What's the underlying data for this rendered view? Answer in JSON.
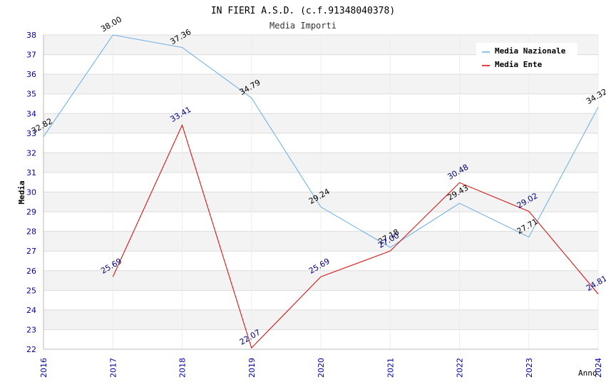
{
  "chart_data": {
    "type": "line",
    "title": "IN FIERI A.S.D. (c.f.91348040378)",
    "subtitle": "Media Importi",
    "xlabel": "Anno",
    "ylabel": "Media",
    "ylim": [
      22,
      38
    ],
    "yticks": [
      "22",
      "23",
      "24",
      "25",
      "26",
      "27",
      "28",
      "29",
      "30",
      "31",
      "32",
      "33",
      "34",
      "35",
      "36",
      "37",
      "38"
    ],
    "xticks": [
      "2016",
      "2017",
      "2018",
      "2019",
      "2020",
      "2021",
      "2022",
      "2023",
      "2024"
    ],
    "legend_position": "top-right",
    "series": [
      {
        "name": "Media Nazionale",
        "color": "#6aaee6",
        "label_color": "#000000",
        "x": [
          "2016",
          "2017",
          "2018",
          "2019",
          "2020",
          "2021",
          "2022",
          "2023",
          "2024"
        ],
        "values": [
          32.82,
          38.0,
          37.36,
          34.79,
          29.24,
          27.18,
          29.43,
          27.71,
          34.32
        ],
        "labels": [
          "32.82",
          "38.00",
          "37.36",
          "34.79",
          "29.24",
          "27.18",
          "29.43",
          "27.71",
          "34.32"
        ]
      },
      {
        "name": "Media Ente",
        "color": "#dd0000",
        "label_color": "#000080",
        "x": [
          "2017",
          "2018",
          "2019",
          "2020",
          "2021",
          "2022",
          "2023",
          "2024"
        ],
        "values": [
          25.69,
          33.41,
          22.07,
          25.69,
          27.0,
          30.48,
          29.02,
          24.81
        ],
        "labels": [
          "25.69",
          "33.41",
          "22.07",
          "25.69",
          "27.00",
          "30.48",
          "29.02",
          "24.81"
        ]
      }
    ]
  }
}
